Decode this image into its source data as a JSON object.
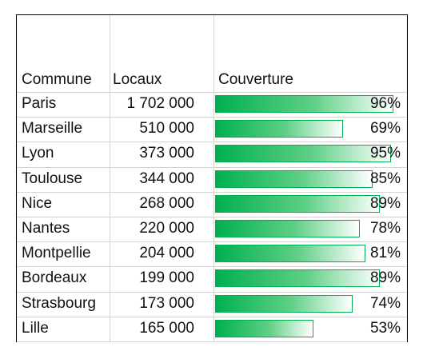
{
  "table": {
    "headers": {
      "commune": "Commune",
      "locaux": "Locaux",
      "couverture": "Couverture"
    },
    "rows": [
      {
        "commune": "Paris",
        "locaux": "1 702 000",
        "couverture": "96%",
        "fraction": 0.96
      },
      {
        "commune": "Marseille",
        "locaux": "510 000",
        "couverture": "69%",
        "fraction": 0.69
      },
      {
        "commune": "Lyon",
        "locaux": "373 000",
        "couverture": "95%",
        "fraction": 0.95
      },
      {
        "commune": "Toulouse",
        "locaux": "344 000",
        "couverture": "85%",
        "fraction": 0.85
      },
      {
        "commune": "Nice",
        "locaux": "268 000",
        "couverture": "89%",
        "fraction": 0.89
      },
      {
        "commune": "Nantes",
        "locaux": "220 000",
        "couverture": "78%",
        "fraction": 0.78
      },
      {
        "commune": "Montpellie",
        "locaux": "204 000",
        "couverture": "81%",
        "fraction": 0.81
      },
      {
        "commune": "Bordeaux",
        "locaux": "199 000",
        "couverture": "89%",
        "fraction": 0.89
      },
      {
        "commune": "Strasbourg",
        "locaux": "173 000",
        "couverture": "74%",
        "fraction": 0.74
      },
      {
        "commune": "Lille",
        "locaux": "165 000",
        "couverture": "53%",
        "fraction": 0.53
      }
    ],
    "bar_color": "#00b050"
  }
}
